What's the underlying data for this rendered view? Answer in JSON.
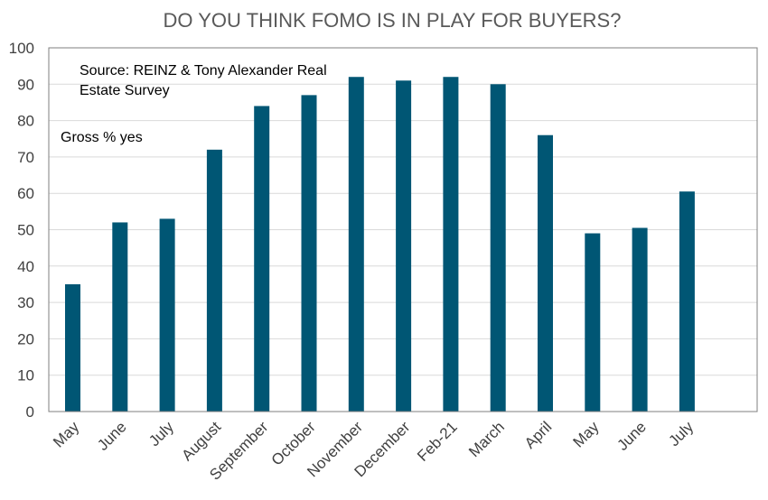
{
  "chart_data": {
    "type": "bar",
    "title": "DO YOU THINK FOMO IS IN PLAY FOR BUYERS?",
    "annotations": {
      "source_line1": "Source: REINZ & Tony Alexander Real",
      "source_line2": "Estate Survey",
      "measure": "Gross % yes"
    },
    "categories": [
      "May",
      "June",
      "July",
      "August",
      "September",
      "October",
      "November",
      "December",
      "Feb-21",
      "March",
      "April",
      "May",
      "June",
      "July"
    ],
    "values": [
      35,
      52,
      53,
      72,
      84,
      87,
      92,
      91,
      92,
      90,
      76,
      49,
      50.5,
      60.5
    ],
    "ylim": [
      0,
      100
    ],
    "yticks": [
      0,
      10,
      20,
      30,
      40,
      50,
      60,
      70,
      80,
      90,
      100
    ],
    "grid": true,
    "bar_color": "#005674",
    "grid_color": "#d9d9d9",
    "xlabel": "",
    "ylabel": ""
  }
}
